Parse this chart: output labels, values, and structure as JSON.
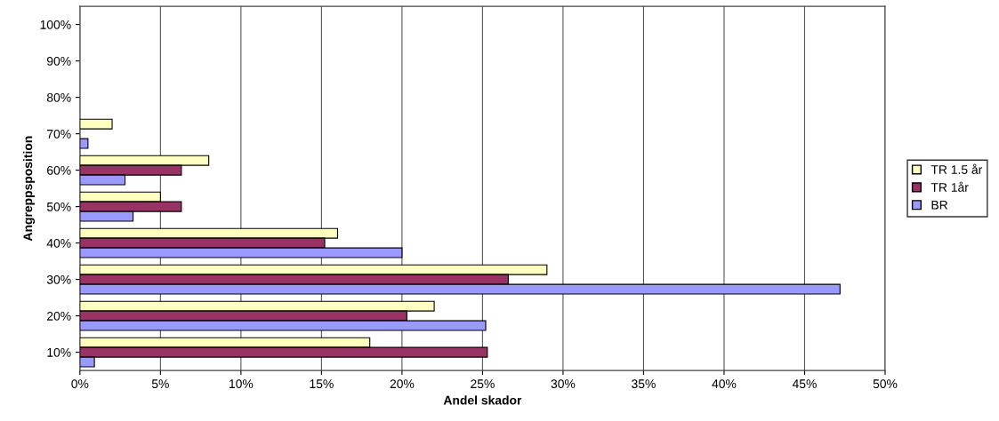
{
  "chart_data": {
    "type": "bar",
    "orientation": "horizontal",
    "xlabel": "Andel skador",
    "ylabel": "Angreppsposition",
    "categories": [
      "100%",
      "90%",
      "80%",
      "70%",
      "60%",
      "50%",
      "40%",
      "30%",
      "20%",
      "10%"
    ],
    "series": [
      {
        "name": "TR 1.5 år",
        "color": "#ffffc0",
        "values": [
          null,
          null,
          null,
          2,
          8,
          5,
          16,
          29,
          22,
          18
        ]
      },
      {
        "name": "TR 1år",
        "color": "#993366",
        "values": [
          null,
          null,
          null,
          null,
          6.3,
          6.3,
          15.2,
          26.6,
          20.3,
          25.3
        ]
      },
      {
        "name": "BR",
        "color": "#9999ff",
        "values": [
          null,
          null,
          null,
          0.5,
          2.8,
          3.3,
          20,
          47.2,
          25.2,
          0.9
        ]
      }
    ],
    "xlim": [
      0,
      50
    ],
    "xticks": [
      {
        "value": 0,
        "label": "0%"
      },
      {
        "value": 5,
        "label": "5%"
      },
      {
        "value": 10,
        "label": "10%"
      },
      {
        "value": 15,
        "label": "15%"
      },
      {
        "value": 20,
        "label": "20%"
      },
      {
        "value": 25,
        "label": "25%"
      },
      {
        "value": 30,
        "label": "30%"
      },
      {
        "value": 35,
        "label": "35%"
      },
      {
        "value": 40,
        "label": "40%"
      },
      {
        "value": 45,
        "label": "45%"
      },
      {
        "value": 50,
        "label": "50%"
      }
    ],
    "grid": "x",
    "legend": "right"
  }
}
